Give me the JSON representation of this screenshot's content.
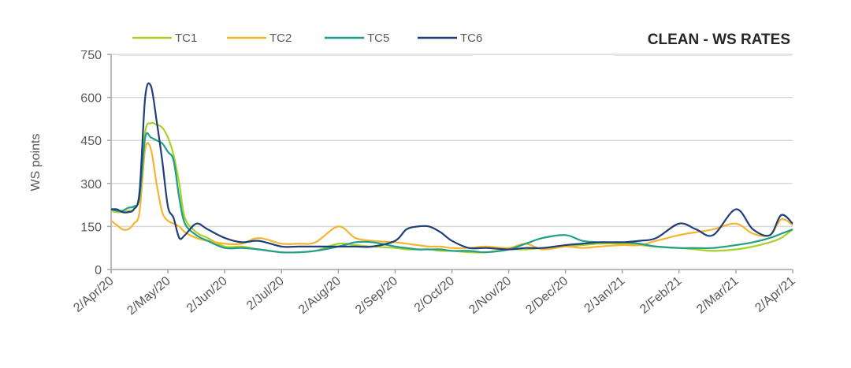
{
  "chart_data": {
    "type": "line",
    "title": "CLEAN - WS RATES",
    "xlabel": "",
    "ylabel": "WS points",
    "ylim": [
      0,
      750
    ],
    "yticks": [
      0,
      150,
      300,
      450,
      600,
      750
    ],
    "grid": "horizontal",
    "legend_position": "top-left",
    "x_tick_labels": [
      "2/Apr/20",
      "2/May/20",
      "2/Jun/20",
      "2/Jul/20",
      "2/Aug/20",
      "2/Sep/20",
      "2/Oct/20",
      "2/Nov/20",
      "2/Dec/20",
      "2/Jan/21",
      "2/Feb/21",
      "2/Mar/21",
      "2/Apr/21"
    ],
    "x": [
      0,
      0.1,
      0.2,
      0.3,
      0.4,
      0.5,
      0.6,
      0.7,
      0.8,
      0.9,
      1.0,
      1.1,
      1.2,
      1.3,
      1.5,
      1.7,
      2.0,
      2.3,
      2.6,
      3.0,
      3.3,
      3.6,
      4.0,
      4.3,
      4.6,
      5.0,
      5.2,
      5.4,
      5.6,
      5.8,
      6.0,
      6.3,
      6.6,
      7.0,
      7.3,
      7.6,
      8.0,
      8.3,
      8.6,
      9.0,
      9.3,
      9.6,
      10.0,
      10.3,
      10.6,
      11.0,
      11.3,
      11.6,
      11.8,
      12.0
    ],
    "series": [
      {
        "name": "TC1",
        "color": "#a8d12a",
        "values": [
          205,
          200,
          200,
          205,
          210,
          260,
          480,
          510,
          505,
          495,
          460,
          400,
          300,
          180,
          130,
          110,
          80,
          80,
          70,
          60,
          60,
          65,
          90,
          85,
          80,
          75,
          70,
          70,
          70,
          65,
          65,
          60,
          60,
          70,
          70,
          75,
          80,
          85,
          90,
          90,
          85,
          80,
          75,
          70,
          65,
          70,
          80,
          95,
          110,
          140
        ]
      },
      {
        "name": "TC2",
        "color": "#f5b52e",
        "values": [
          170,
          155,
          140,
          140,
          160,
          200,
          420,
          420,
          300,
          200,
          170,
          160,
          150,
          130,
          110,
          100,
          90,
          90,
          110,
          90,
          90,
          95,
          150,
          110,
          100,
          95,
          90,
          85,
          80,
          80,
          75,
          75,
          80,
          75,
          90,
          70,
          80,
          75,
          80,
          85,
          85,
          100,
          120,
          130,
          140,
          160,
          125,
          120,
          175,
          155
        ]
      },
      {
        "name": "TC5",
        "color": "#1f9e89",
        "values": [
          210,
          205,
          205,
          215,
          220,
          250,
          460,
          460,
          450,
          440,
          410,
          380,
          250,
          160,
          120,
          100,
          75,
          75,
          70,
          60,
          60,
          65,
          80,
          95,
          95,
          80,
          75,
          70,
          70,
          70,
          65,
          65,
          60,
          70,
          90,
          110,
          120,
          100,
          95,
          95,
          90,
          80,
          75,
          75,
          75,
          85,
          95,
          110,
          125,
          140
        ]
      },
      {
        "name": "TC6",
        "color": "#1f3f7a",
        "values": [
          210,
          210,
          200,
          200,
          210,
          270,
          600,
          640,
          520,
          380,
          220,
          180,
          110,
          120,
          160,
          140,
          110,
          95,
          100,
          80,
          80,
          80,
          80,
          80,
          80,
          100,
          140,
          150,
          150,
          130,
          100,
          75,
          75,
          70,
          75,
          75,
          85,
          90,
          95,
          95,
          100,
          110,
          160,
          140,
          120,
          210,
          140,
          120,
          190,
          160
        ]
      }
    ]
  },
  "legend": {
    "items": [
      {
        "label": "TC1",
        "color": "#a8d12a"
      },
      {
        "label": "TC2",
        "color": "#f5b52e"
      },
      {
        "label": "TC5",
        "color": "#1f9e89"
      },
      {
        "label": "TC6",
        "color": "#1f3f7a"
      }
    ]
  }
}
